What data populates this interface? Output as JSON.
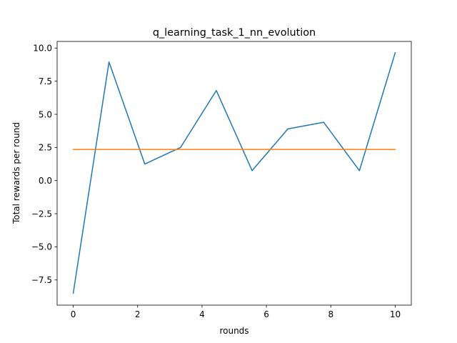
{
  "chart_data": {
    "type": "line",
    "title": "q_learning_task_1_nn_evolution",
    "xlabel": "rounds",
    "ylabel": "Total rewards per round",
    "xlim": [
      -0.5,
      10.5
    ],
    "ylim": [
      -9.4,
      10.5
    ],
    "x_ticks": [
      0,
      2,
      4,
      6,
      8,
      10
    ],
    "x_tick_labels": [
      "0",
      "2",
      "4",
      "6",
      "8",
      "10"
    ],
    "y_ticks": [
      -7.5,
      -5.0,
      -2.5,
      0.0,
      2.5,
      5.0,
      7.5,
      10.0
    ],
    "y_tick_labels": [
      "−7.5",
      "−5.0",
      "−2.5",
      "0.0",
      "2.5",
      "5.0",
      "7.5",
      "10.0"
    ],
    "grid": false,
    "series": [
      {
        "color": "#1f77b4",
        "x": [
          0,
          1.111,
          2.222,
          3.333,
          4.444,
          5.556,
          6.667,
          7.778,
          8.889,
          10
        ],
        "values": [
          -8.5,
          8.95,
          1.25,
          2.5,
          6.8,
          0.75,
          3.9,
          4.4,
          0.75,
          9.65
        ]
      },
      {
        "color": "#ff7f0e",
        "x": [
          0,
          10
        ],
        "values": [
          2.35,
          2.35
        ]
      }
    ]
  }
}
